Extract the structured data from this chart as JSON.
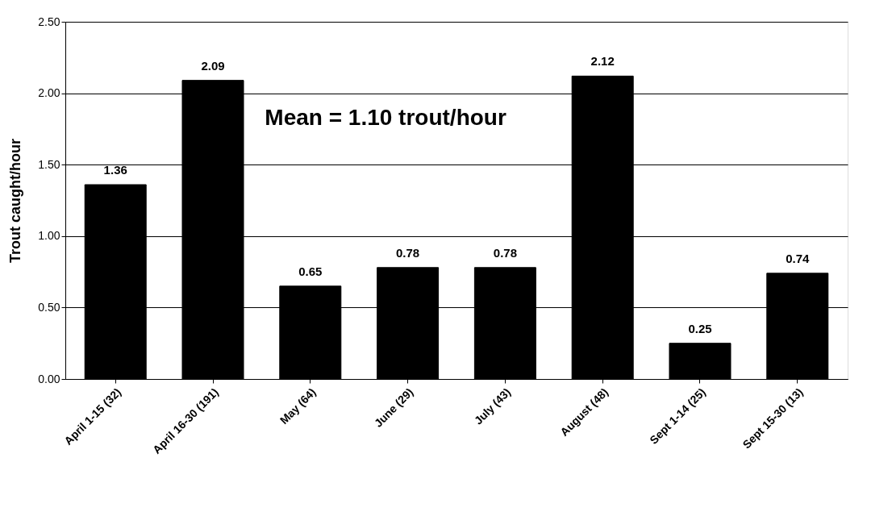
{
  "chart_data": {
    "type": "bar",
    "ylabel": "Trout caught/hour",
    "categories": [
      "April 1-15 (32)",
      "April 16-30 (191)",
      "May (64)",
      "June (29)",
      "July (43)",
      "August (48)",
      "Sept 1-14 (25)",
      "Sept 15-30 (13)"
    ],
    "values": [
      1.36,
      2.09,
      0.65,
      0.78,
      0.78,
      2.12,
      0.25,
      0.74
    ],
    "color": "#000000",
    "ylim": [
      0,
      2.5
    ],
    "yticks": [
      {
        "value": 0,
        "label": "0.00"
      },
      {
        "value": 0.5,
        "label": "0.50"
      },
      {
        "value": 1.0,
        "label": "1.00"
      },
      {
        "value": 1.5,
        "label": "1.50"
      },
      {
        "value": 2.0,
        "label": "2.00"
      },
      {
        "value": 2.5,
        "label": "2.50"
      }
    ],
    "grid": "y",
    "data_labels": true,
    "annotations": [
      "Mean = 1.10 trout/hour"
    ]
  }
}
